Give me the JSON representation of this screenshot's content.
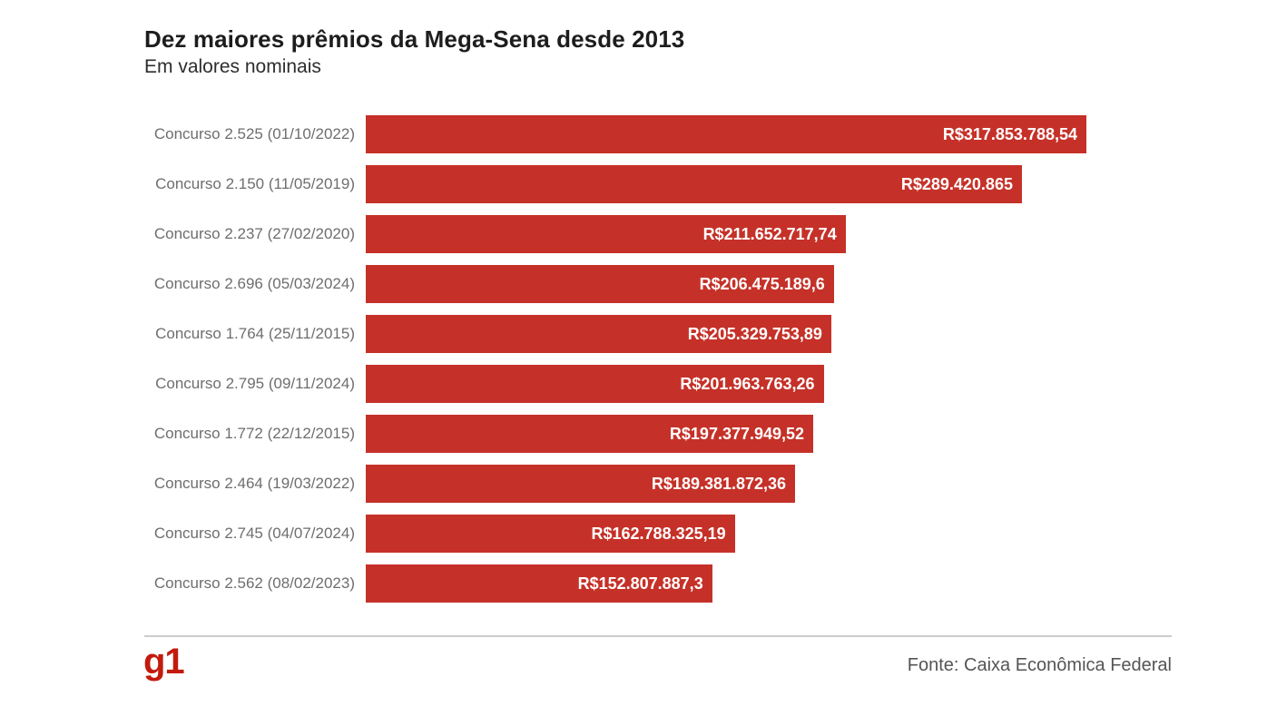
{
  "header": {
    "title": "Dez maiores prêmios da Mega-Sena desde 2013",
    "subtitle": "Em valores nominais"
  },
  "chart_data": {
    "type": "bar",
    "orientation": "horizontal",
    "title": "Dez maiores prêmios da Mega-Sena desde 2013",
    "subtitle": "Em valores nominais",
    "xlabel": "",
    "ylabel": "",
    "xlim": [
      0,
      317853788.54
    ],
    "grid": false,
    "legend": false,
    "categories": [
      "Concurso 2.525 (01/10/2022)",
      "Concurso 2.150 (11/05/2019)",
      "Concurso 2.237 (27/02/2020)",
      "Concurso 2.696 (05/03/2024)",
      "Concurso 1.764 (25/11/2015)",
      "Concurso 2.795 (09/11/2024)",
      "Concurso 1.772 (22/12/2015)",
      "Concurso 2.464 (19/03/2022)",
      "Concurso 2.745 (04/07/2024)",
      "Concurso 2.562 (08/02/2023)"
    ],
    "values": [
      317853788.54,
      289420865,
      211652717.74,
      206475189.6,
      205329753.89,
      201963763.26,
      197377949.52,
      189381872.36,
      162788325.19,
      152807887.3
    ],
    "value_labels": [
      "R$317.853.788,54",
      "R$289.420.865",
      "R$211.652.717,74",
      "R$206.475.189,6",
      "R$205.329.753,89",
      "R$201.963.763,26",
      "R$197.377.949,52",
      "R$189.381.872,36",
      "R$162.788.325,19",
      "R$152.807.887,3"
    ],
    "bar_color": "#c53128",
    "value_label_color": "#ffffff",
    "category_label_color": "#6e6e6e"
  },
  "footer": {
    "logo_text": "g1",
    "logo_color": "#c21b0e",
    "source": "Fonte: Caixa Econômica Federal"
  }
}
